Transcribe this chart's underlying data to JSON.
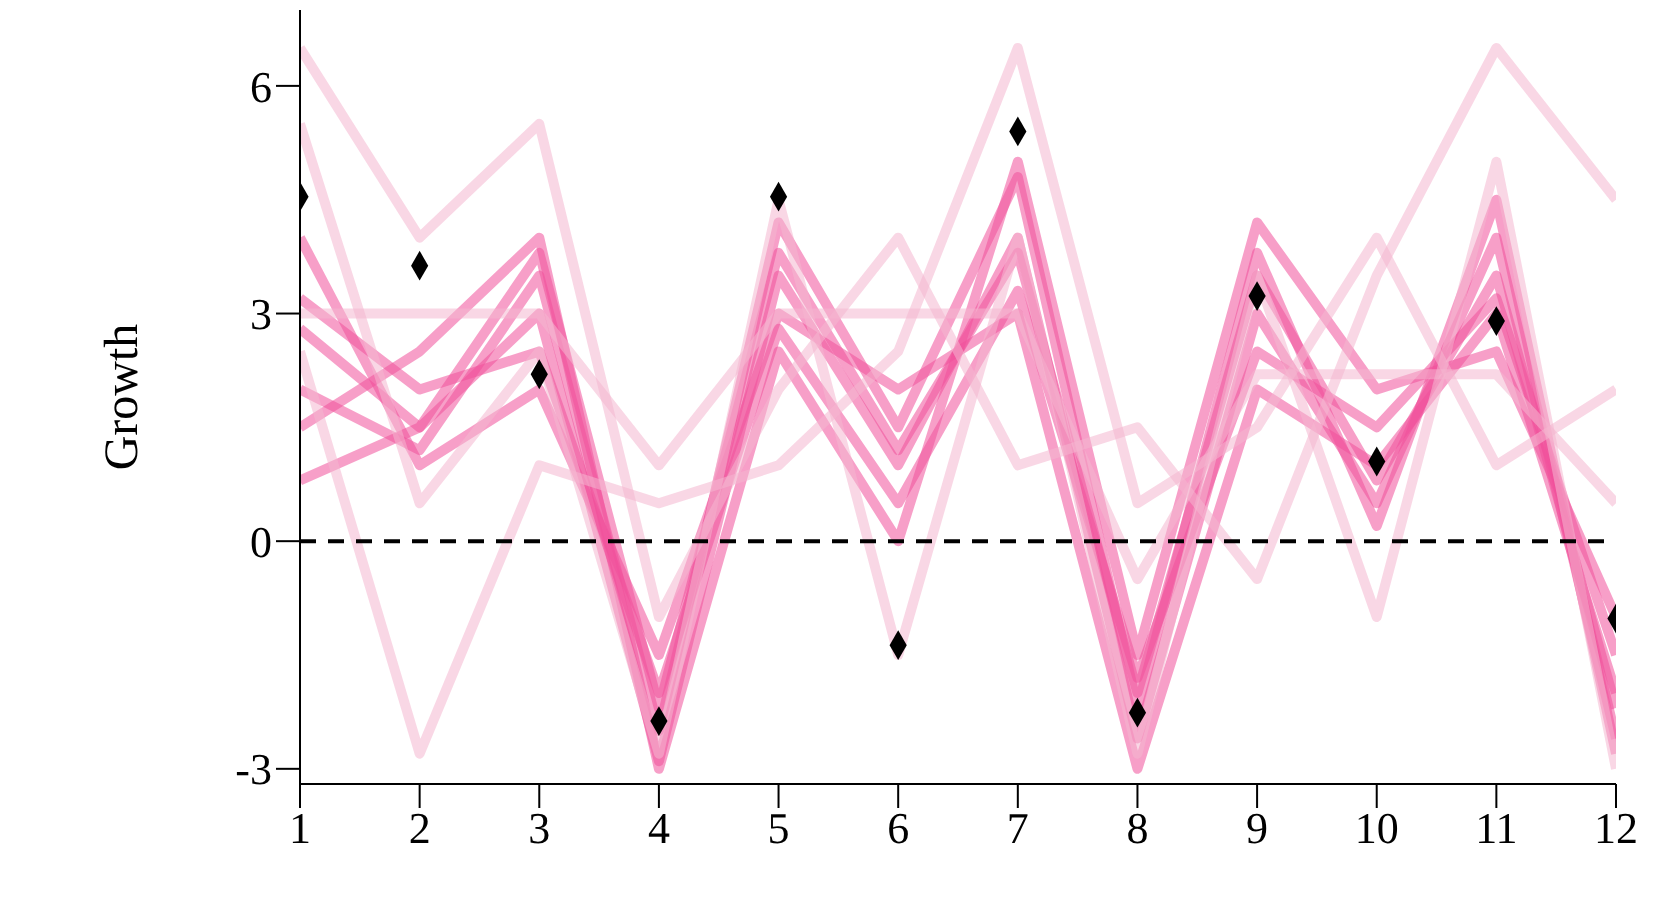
{
  "chart_data": {
    "type": "line",
    "ylabel": "Growth",
    "x": [
      1,
      2,
      3,
      4,
      5,
      6,
      7,
      8,
      9,
      10,
      11,
      12
    ],
    "xlim": [
      1,
      12
    ],
    "xticks": [
      1,
      2,
      3,
      4,
      5,
      6,
      7,
      8,
      9,
      10,
      11,
      12
    ],
    "ylim": [
      -3.2,
      7
    ],
    "yticks": [
      -3,
      0,
      3,
      6
    ],
    "ref_lines": [
      {
        "axis": "y",
        "value": 0,
        "line_style": "dashed",
        "color": "#000000"
      }
    ],
    "series": [
      {
        "color": "#f0509a",
        "marker": "none",
        "values": [
          2.8,
          1.5,
          3.0,
          -2.9,
          3.5,
          1.0,
          4.0,
          -2.6,
          3.0,
          0.5,
          4.0,
          -2.6
        ]
      },
      {
        "color": "#f0509a",
        "marker": "none",
        "values": [
          3.2,
          2.0,
          2.5,
          -2.0,
          2.8,
          0.5,
          3.3,
          -1.8,
          2.5,
          1.5,
          3.2,
          -1.5
        ]
      },
      {
        "color": "#f0509a",
        "marker": "none",
        "values": [
          2.0,
          1.2,
          3.5,
          -2.5,
          4.2,
          1.5,
          4.8,
          -2.2,
          3.8,
          0.2,
          4.5,
          -2.8
        ]
      },
      {
        "color": "#f0509a",
        "marker": "none",
        "values": [
          4.0,
          1.0,
          2.0,
          -1.5,
          3.0,
          2.0,
          3.0,
          -3.0,
          2.0,
          1.0,
          3.0,
          -2.0
        ]
      },
      {
        "color": "#f0509a",
        "marker": "none",
        "values": [
          1.5,
          2.5,
          4.0,
          -3.0,
          2.5,
          0.0,
          5.0,
          -1.5,
          4.2,
          2.0,
          2.5,
          -1.0
        ]
      },
      {
        "color": "#f0509a",
        "marker": "none",
        "values": [
          0.8,
          1.5,
          3.8,
          -2.2,
          3.8,
          1.2,
          3.8,
          -2.0,
          3.5,
          0.8,
          3.5,
          -2.2
        ]
      },
      {
        "color": "#f4b6cf",
        "marker": "none",
        "values": [
          3.0,
          3.0,
          3.0,
          1.0,
          3.0,
          3.0,
          3.0,
          -0.5,
          2.2,
          2.2,
          2.2,
          0.5
        ]
      },
      {
        "color": "#f4b6cf",
        "marker": "none",
        "values": [
          5.5,
          0.5,
          2.5,
          -2.8,
          4.5,
          -1.5,
          4.0,
          -2.8,
          3.5,
          -1.0,
          5.0,
          -3.0
        ]
      },
      {
        "color": "#f4b6cf",
        "marker": "none",
        "values": [
          2.5,
          -2.8,
          1.0,
          0.5,
          1.0,
          2.5,
          6.5,
          0.5,
          1.5,
          4.0,
          1.0,
          2.0
        ]
      },
      {
        "color": "#f4b6cf",
        "marker": "none",
        "values": [
          6.5,
          4.0,
          5.5,
          -1.0,
          2.0,
          4.0,
          1.0,
          1.5,
          -0.5,
          3.5,
          6.5,
          4.5
        ]
      },
      {
        "type": "scatter",
        "color": "#000000",
        "marker": "diamond",
        "values": [
          4.54,
          3.63,
          2.2,
          -2.37,
          4.54,
          -1.37,
          5.4,
          -2.26,
          3.23,
          1.05,
          2.9,
          -1.02
        ]
      }
    ]
  }
}
